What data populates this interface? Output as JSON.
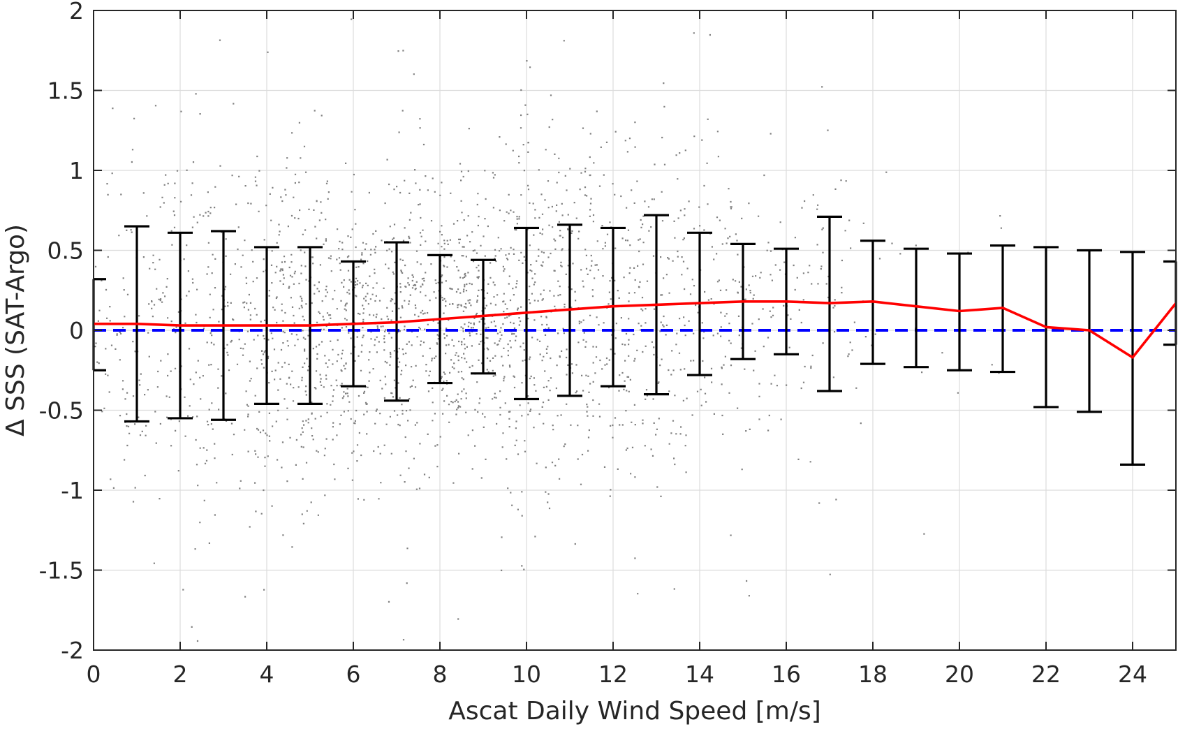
{
  "chart_data": {
    "type": "scatter",
    "xlabel": "Ascat Daily Wind Speed [m/s]",
    "ylabel": "Δ SSS (SAT-Argo)",
    "xlim": [
      0,
      25
    ],
    "ylim": [
      -2,
      2
    ],
    "xticks": [
      0,
      2,
      4,
      6,
      8,
      10,
      12,
      14,
      16,
      18,
      20,
      22,
      24
    ],
    "xtick_labels": [
      "0",
      "2",
      "4",
      "6",
      "8",
      "10",
      "12",
      "14",
      "16",
      "18",
      "20",
      "22",
      "24"
    ],
    "yticks": [
      -2,
      -1.5,
      -1,
      -0.5,
      0,
      0.5,
      1,
      1.5,
      2
    ],
    "ytick_labels": [
      "-2",
      "-1.5",
      "-1",
      "-0.5",
      "0",
      "0.5",
      "1",
      "1.5",
      "2"
    ],
    "grid": true,
    "colors": {
      "scatter": "#808080",
      "mean_line": "#ff0000",
      "reference_line": "#0000ff",
      "error_bars": "#000000",
      "grid": "#dcdcdc",
      "axes": "#262626"
    },
    "scatter_description_points": "dense cloud of gray dots centered near 0.1, spread widest at 6-14 m/s, thinning beyond 18 m/s",
    "series": [
      {
        "type": "line",
        "x": [
          0,
          1,
          2,
          3,
          4,
          5,
          6,
          7,
          8,
          9,
          10,
          11,
          12,
          13,
          14,
          15,
          16,
          17,
          18,
          19,
          20,
          21,
          22,
          23,
          24,
          25
        ],
        "values": [
          0.04,
          0.04,
          0.03,
          0.03,
          0.03,
          0.03,
          0.04,
          0.05,
          0.07,
          0.09,
          0.11,
          0.13,
          0.15,
          0.16,
          0.17,
          0.18,
          0.18,
          0.17,
          0.18,
          0.15,
          0.12,
          0.14,
          0.02,
          0.0,
          -0.17,
          0.17
        ]
      },
      {
        "type": "errorbar",
        "x": [
          0,
          1,
          2,
          3,
          4,
          5,
          6,
          7,
          8,
          9,
          10,
          11,
          12,
          13,
          14,
          15,
          16,
          17,
          18,
          19,
          20,
          21,
          22,
          23,
          24,
          25
        ],
        "upper": [
          0.32,
          0.65,
          0.61,
          0.62,
          0.52,
          0.52,
          0.43,
          0.55,
          0.47,
          0.44,
          0.64,
          0.66,
          0.64,
          0.72,
          0.61,
          0.54,
          0.51,
          0.71,
          0.56,
          0.51,
          0.48,
          0.53,
          0.52,
          0.5,
          0.49,
          0.43
        ],
        "lower": [
          -0.25,
          -0.57,
          -0.55,
          -0.56,
          -0.46,
          -0.46,
          -0.35,
          -0.44,
          -0.33,
          -0.27,
          -0.43,
          -0.41,
          -0.35,
          -0.4,
          -0.28,
          -0.18,
          -0.15,
          -0.38,
          -0.21,
          -0.23,
          -0.25,
          -0.26,
          -0.48,
          -0.51,
          -0.84,
          -0.09
        ]
      },
      {
        "type": "line",
        "style": "dashed",
        "x": [
          0,
          25
        ],
        "values": [
          0,
          0
        ]
      }
    ]
  }
}
